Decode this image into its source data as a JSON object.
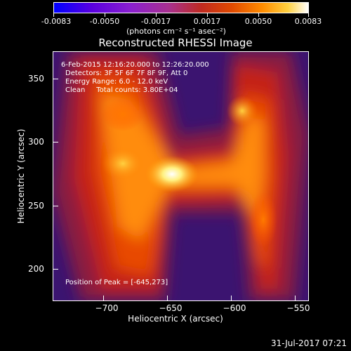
{
  "colorbar": {
    "ticks": [
      "-0.0083",
      "-0.0050",
      "-0.0017",
      "0.0017",
      "0.0050",
      "0.0083"
    ],
    "units": "(photons cm⁻² s⁻¹ asec⁻²)"
  },
  "title": "Reconstructed RHESSI Image",
  "info": {
    "time": "6-Feb-2015 12:16:20.000 to 12:26:20.000",
    "detectors": "Detectors: 3F 5F 6F 7F 8F 9F, Att 0",
    "energy": "Energy Range: 6.0 - 12.0 keV",
    "method": "Clean     Total counts: 3.80E+04",
    "peak": "Position of Peak = [-645,273]"
  },
  "axes": {
    "x_title": "Heliocentric X (arcsec)",
    "y_title": "Heliocentric Y (arcsec)",
    "x_ticks": [
      "−700",
      "−650",
      "−600",
      "−550"
    ],
    "y_ticks": [
      "350",
      "300",
      "250",
      "200"
    ]
  },
  "date_stamp": "31-Jul-2017 07:21"
}
